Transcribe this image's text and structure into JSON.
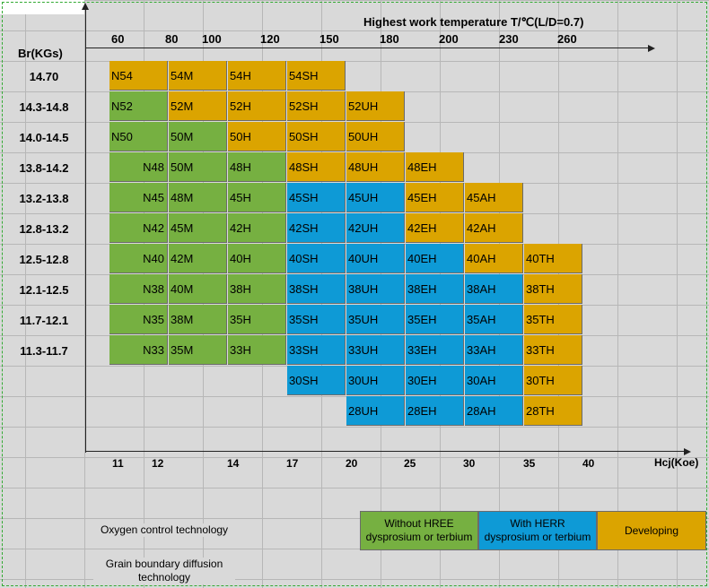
{
  "chart": {
    "title": "Highest work temperature  T/℃(L/D=0.7)",
    "y_axis_label": "Br(KGs)",
    "x_axis_label": "Hcj(Koe)",
    "temperatures": [
      "60",
      "80",
      "100",
      "120",
      "150",
      "180",
      "200",
      "230",
      "260"
    ],
    "hcj_ticks": [
      "11",
      "12",
      "14",
      "17",
      "20",
      "25",
      "30",
      "35",
      "40"
    ],
    "br_rows": [
      "14.70",
      "14.3-14.8",
      "14.0-14.5",
      "13.8-14.2",
      "13.2-13.8",
      "12.8-13.2",
      "12.5-12.8",
      "12.1-12.5",
      "11.7-12.1",
      "11.3-11.7"
    ]
  },
  "grades": [
    [
      "N54",
      "54M",
      "54H",
      "54SH"
    ],
    [
      "N52",
      "52M",
      "52H",
      "52SH",
      "52UH"
    ],
    [
      "N50",
      "50M",
      "50H",
      "50SH",
      "50UH"
    ],
    [
      "N48",
      "50M",
      "48H",
      "48SH",
      "48UH",
      "48EH"
    ],
    [
      "N45",
      "48M",
      "45H",
      "45SH",
      "45UH",
      "45EH",
      "45AH"
    ],
    [
      "N42",
      "45M",
      "42H",
      "42SH",
      "42UH",
      "42EH",
      "42AH"
    ],
    [
      "N40",
      "42M",
      "40H",
      "40SH",
      "40UH",
      "40EH",
      "40AH",
      "40TH"
    ],
    [
      "N38",
      "40M",
      "38H",
      "38SH",
      "38UH",
      "38EH",
      "38AH",
      "38TH"
    ],
    [
      "N35",
      "38M",
      "35H",
      "35SH",
      "35UH",
      "35EH",
      "35AH",
      "35TH"
    ],
    [
      "N33",
      "35M",
      "33H",
      "33SH",
      "33UH",
      "33EH",
      "33AH",
      "33TH"
    ],
    [
      "",
      "",
      "",
      "30SH",
      "30UH",
      "30EH",
      "30AH",
      "30TH"
    ],
    [
      "",
      "",
      "",
      "",
      "28UH",
      "28EH",
      "28AH",
      "28TH"
    ]
  ],
  "grade_colors": [
    [
      "o",
      "o",
      "o",
      "o"
    ],
    [
      "g",
      "o",
      "o",
      "o",
      "o"
    ],
    [
      "g",
      "g",
      "o",
      "o",
      "o"
    ],
    [
      "g",
      "g",
      "g",
      "o",
      "o",
      "o"
    ],
    [
      "g",
      "g",
      "g",
      "b",
      "b",
      "o",
      "o"
    ],
    [
      "g",
      "g",
      "g",
      "b",
      "b",
      "o",
      "o"
    ],
    [
      "g",
      "g",
      "g",
      "b",
      "b",
      "b",
      "o",
      "o"
    ],
    [
      "g",
      "g",
      "g",
      "b",
      "b",
      "b",
      "b",
      "o"
    ],
    [
      "g",
      "g",
      "g",
      "b",
      "b",
      "b",
      "b",
      "o"
    ],
    [
      "g",
      "g",
      "g",
      "b",
      "b",
      "b",
      "b",
      "o"
    ],
    [
      "",
      "",
      "",
      "b",
      "b",
      "b",
      "b",
      "o"
    ],
    [
      "",
      "",
      "",
      "",
      "b",
      "b",
      "b",
      "o"
    ]
  ],
  "colors": {
    "green": "#76b041",
    "blue": "#0e9ad6",
    "orange": "#dba400"
  },
  "legend": {
    "oxygen": "Oxygen control technology",
    "grain": "Grain boundary diffusion technology",
    "without_hree": "Without HREE dysprosium or terbium",
    "with_herr": "With HERR dysprosium or terbium",
    "developing": "Developing"
  }
}
